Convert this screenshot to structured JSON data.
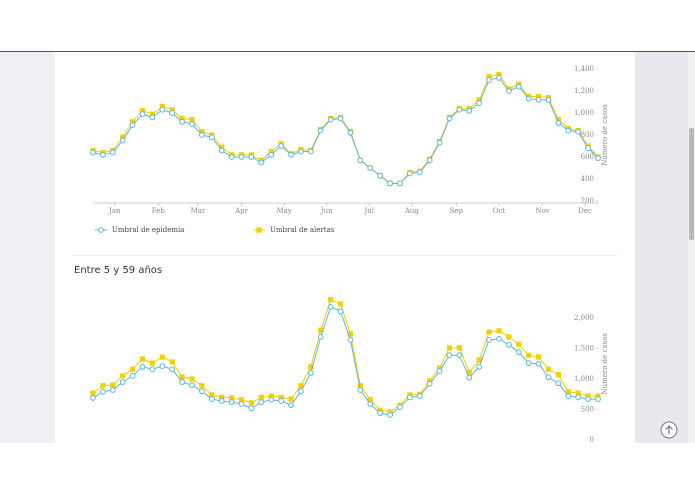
{
  "section_title": "Entre 5 y 59 años",
  "chart_data": [
    {
      "type": "line",
      "x": [
        1,
        2,
        3,
        4,
        5,
        6,
        7,
        8,
        9,
        10,
        11,
        12,
        13,
        14,
        15,
        16,
        17,
        18,
        19,
        20,
        21,
        22,
        23,
        24,
        25,
        26,
        27,
        28,
        29,
        30,
        31,
        32,
        33,
        34,
        35,
        36,
        37,
        38,
        39,
        40,
        41,
        42,
        43,
        44,
        45,
        46,
        47,
        48,
        49,
        50,
        51,
        52
      ],
      "xlim": [
        1,
        52
      ],
      "xticks": [
        {
          "value": 3.2,
          "label": "Jan"
        },
        {
          "value": 7.6,
          "label": "Feb"
        },
        {
          "value": 11.6,
          "label": "Mar"
        },
        {
          "value": 16,
          "label": "Apr"
        },
        {
          "value": 20.3,
          "label": "May"
        },
        {
          "value": 24.6,
          "label": "Jun"
        },
        {
          "value": 28.9,
          "label": "Jul"
        },
        {
          "value": 33.2,
          "label": "Aug"
        },
        {
          "value": 37.7,
          "label": "Sep"
        },
        {
          "value": 42,
          "label": "Oct"
        },
        {
          "value": 46.4,
          "label": "Nov"
        },
        {
          "value": 50.7,
          "label": "Dec"
        }
      ],
      "ylim": [
        200,
        1400
      ],
      "yticks": [
        200,
        400,
        600,
        800,
        {
          "value": 1000,
          "label": "1,000"
        },
        {
          "value": 1200,
          "label": "1,200"
        },
        {
          "value": 1400,
          "label": "1,400"
        }
      ],
      "y_axis_label": "Número de casos",
      "series": [
        {
          "name": "Umbral de alertas",
          "color": "#f5d000",
          "values": [
            660,
            640,
            660,
            780,
            920,
            1020,
            990,
            1060,
            1030,
            950,
            940,
            830,
            800,
            690,
            620,
            620,
            620,
            570,
            650,
            720,
            630,
            670,
            660,
            850,
            950,
            960,
            830,
            570,
            500,
            430,
            360,
            360,
            460,
            470,
            580,
            740,
            960,
            1040,
            1040,
            1120,
            1330,
            1350,
            1220,
            1260,
            1150,
            1150,
            1140,
            940,
            860,
            840,
            700,
            600
          ]
        },
        {
          "name": "Umbral de epidemia",
          "color": "#5bb8d6",
          "values": [
            640,
            620,
            640,
            750,
            890,
            990,
            960,
            1030,
            1000,
            920,
            900,
            800,
            780,
            660,
            600,
            600,
            600,
            550,
            620,
            700,
            620,
            650,
            650,
            840,
            940,
            950,
            820,
            570,
            500,
            430,
            360,
            360,
            450,
            460,
            570,
            730,
            950,
            1030,
            1020,
            1090,
            1300,
            1320,
            1200,
            1240,
            1130,
            1120,
            1120,
            910,
            840,
            830,
            680,
            590
          ]
        }
      ]
    },
    {
      "type": "line",
      "x": [
        1,
        2,
        3,
        4,
        5,
        6,
        7,
        8,
        9,
        10,
        11,
        12,
        13,
        14,
        15,
        16,
        17,
        18,
        19,
        20,
        21,
        22,
        23,
        24,
        25,
        26,
        27,
        28,
        29,
        30,
        31,
        32,
        33,
        34,
        35,
        36,
        37,
        38,
        39,
        40,
        41,
        42,
        43,
        44,
        45,
        46,
        47,
        48,
        49,
        50,
        51,
        52
      ],
      "xlim": [
        1,
        52
      ],
      "ylim": [
        0,
        2500
      ],
      "yticks": [
        0,
        500,
        {
          "value": 1000,
          "label": "1,000"
        },
        {
          "value": 1500,
          "label": "1,500"
        },
        {
          "value": 2000,
          "label": "2,000"
        }
      ],
      "y_axis_label": "Número de casos",
      "series": [
        {
          "color": "#f5d000",
          "values": [
            770,
            890,
            900,
            1050,
            1160,
            1330,
            1260,
            1360,
            1280,
            1030,
            1000,
            890,
            740,
            700,
            690,
            660,
            610,
            700,
            720,
            700,
            670,
            890,
            1200,
            1800,
            2300,
            2230,
            1740,
            890,
            660,
            490,
            460,
            570,
            740,
            750,
            970,
            1180,
            1510,
            1510,
            1110,
            1310,
            1770,
            1790,
            1690,
            1570,
            1390,
            1360,
            1160,
            1070,
            790,
            770,
            720,
            720
          ]
        },
        {
          "color": "#5bb8d6",
          "values": [
            690,
            790,
            820,
            950,
            1050,
            1200,
            1160,
            1210,
            1160,
            950,
            900,
            800,
            670,
            640,
            620,
            590,
            520,
            620,
            660,
            640,
            570,
            800,
            1100,
            1690,
            2180,
            2110,
            1640,
            820,
            590,
            440,
            410,
            540,
            700,
            720,
            920,
            1130,
            1390,
            1390,
            1020,
            1200,
            1640,
            1660,
            1560,
            1440,
            1260,
            1250,
            1030,
            930,
            720,
            700,
            670,
            670
          ]
        }
      ]
    }
  ]
}
